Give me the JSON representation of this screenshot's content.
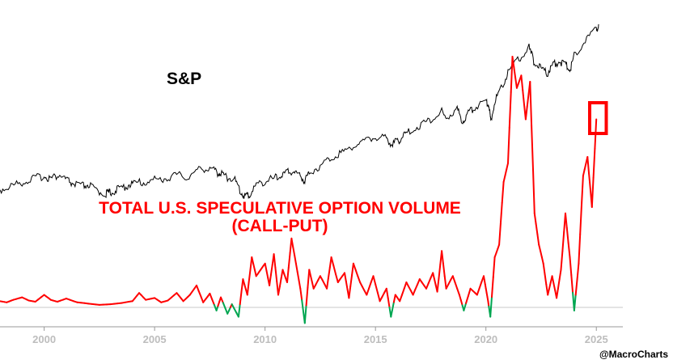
{
  "chart_data": {
    "type": "line",
    "labels": {
      "sp": "S&P",
      "volume_line1": "TOTAL U.S. SPECULATIVE OPTION VOLUME",
      "volume_line2": "(CALL-PUT)"
    },
    "credit": "@MacroCharts",
    "x_ticks": [
      "2000",
      "2005",
      "2010",
      "2015",
      "2020",
      "2025"
    ],
    "x_range": [
      1998,
      2026.2
    ],
    "colors": {
      "sp": "#000000",
      "volume": "#ff0000",
      "volume_below_zero": "#00a651",
      "highlight_box": "#ff0000",
      "zero_line": "#c8c8c8",
      "axis": "#999999",
      "tick_text": "#bdbdbd"
    },
    "series": [
      {
        "key": "sp",
        "name": "S&P",
        "x": [
          1998.0,
          1998.5,
          1999.0,
          1999.5,
          2000.0,
          2000.3,
          2000.7,
          2001.0,
          2001.3,
          2001.7,
          2002.0,
          2002.4,
          2002.8,
          2003.0,
          2003.3,
          2003.7,
          2004.0,
          2004.5,
          2005.0,
          2005.5,
          2006.0,
          2006.5,
          2007.0,
          2007.5,
          2007.8,
          2008.0,
          2008.3,
          2008.6,
          2008.9,
          2009.1,
          2009.3,
          2009.6,
          2010.0,
          2010.4,
          2010.7,
          2011.0,
          2011.3,
          2011.6,
          2011.8,
          2012.0,
          2012.5,
          2013.0,
          2013.5,
          2014.0,
          2014.5,
          2015.0,
          2015.5,
          2015.7,
          2016.0,
          2016.2,
          2016.5,
          2017.0,
          2017.5,
          2018.0,
          2018.2,
          2018.7,
          2018.95,
          2019.2,
          2019.5,
          2020.0,
          2020.15,
          2020.22,
          2020.4,
          2020.7,
          2021.0,
          2021.5,
          2021.95,
          2022.2,
          2022.5,
          2022.8,
          2023.0,
          2023.3,
          2023.6,
          2023.8,
          2024.0,
          2024.5,
          2025.0,
          2025.1
        ],
        "y": [
          0.34,
          0.37,
          0.4,
          0.43,
          0.45,
          0.43,
          0.46,
          0.42,
          0.39,
          0.37,
          0.38,
          0.33,
          0.31,
          0.32,
          0.34,
          0.37,
          0.39,
          0.4,
          0.42,
          0.43,
          0.46,
          0.44,
          0.5,
          0.52,
          0.48,
          0.47,
          0.44,
          0.43,
          0.32,
          0.29,
          0.3,
          0.38,
          0.41,
          0.43,
          0.45,
          0.48,
          0.49,
          0.45,
          0.41,
          0.48,
          0.53,
          0.6,
          0.64,
          0.69,
          0.73,
          0.76,
          0.75,
          0.71,
          0.72,
          0.76,
          0.8,
          0.85,
          0.9,
          0.96,
          0.91,
          0.98,
          0.88,
          0.95,
          1.0,
          1.05,
          1.01,
          0.88,
          1.05,
          1.15,
          1.28,
          1.38,
          1.47,
          1.35,
          1.3,
          1.27,
          1.33,
          1.36,
          1.34,
          1.29,
          1.41,
          1.53,
          1.62,
          1.64
        ]
      },
      {
        "key": "volume",
        "name": "TOTAL U.S. SPECULATIVE OPTION VOLUME (CALL-PUT)",
        "x": [
          1998.0,
          1998.3,
          1998.6,
          1999.0,
          1999.3,
          1999.6,
          2000.0,
          2000.3,
          2000.6,
          2001.0,
          2001.5,
          2002.0,
          2002.5,
          2003.0,
          2003.5,
          2004.0,
          2004.3,
          2004.6,
          2005.0,
          2005.3,
          2005.6,
          2006.0,
          2006.3,
          2006.6,
          2006.9,
          2007.2,
          2007.5,
          2007.8,
          2008.0,
          2008.3,
          2008.5,
          2008.8,
          2009.0,
          2009.2,
          2009.4,
          2009.6,
          2009.8,
          2010.0,
          2010.2,
          2010.4,
          2010.6,
          2010.8,
          2011.0,
          2011.2,
          2011.4,
          2011.6,
          2011.8,
          2012.0,
          2012.2,
          2012.5,
          2012.8,
          2013.0,
          2013.3,
          2013.6,
          2013.8,
          2014.0,
          2014.3,
          2014.6,
          2014.9,
          2015.2,
          2015.5,
          2015.7,
          2015.9,
          2016.1,
          2016.4,
          2016.7,
          2017.0,
          2017.3,
          2017.6,
          2017.8,
          2018.0,
          2018.2,
          2018.5,
          2018.8,
          2019.0,
          2019.3,
          2019.6,
          2019.9,
          2020.0,
          2020.1,
          2020.2,
          2020.4,
          2020.6,
          2020.8,
          2021.0,
          2021.2,
          2021.4,
          2021.6,
          2021.8,
          2022.0,
          2022.2,
          2022.4,
          2022.6,
          2022.8,
          2023.0,
          2023.2,
          2023.4,
          2023.6,
          2023.8,
          2024.0,
          2024.2,
          2024.4,
          2024.6,
          2024.8,
          2025.0
        ],
        "y": [
          1.0,
          0.8,
          1.2,
          1.6,
          1.1,
          0.9,
          2.0,
          1.2,
          0.9,
          1.4,
          0.8,
          0.6,
          0.4,
          0.5,
          0.7,
          1.0,
          2.3,
          1.2,
          1.5,
          0.8,
          1.1,
          2.3,
          1.0,
          2.0,
          3.5,
          0.8,
          2.2,
          -0.5,
          1.6,
          -1.0,
          0.5,
          -1.5,
          4.5,
          2.0,
          8.0,
          5.0,
          6.0,
          7.0,
          3.5,
          8.5,
          2.0,
          6.0,
          4.0,
          11.0,
          7.0,
          3.0,
          -2.5,
          6.0,
          3.0,
          5.0,
          3.0,
          8.0,
          4.0,
          5.5,
          1.5,
          7.0,
          4.0,
          2.0,
          5.0,
          1.0,
          3.0,
          -1.5,
          2.0,
          1.0,
          4.0,
          2.0,
          4.5,
          3.0,
          5.5,
          2.5,
          9.0,
          3.0,
          5.0,
          2.0,
          -0.5,
          3.0,
          2.0,
          5.0,
          3.0,
          1.0,
          -1.5,
          8.0,
          10.0,
          20.0,
          23.0,
          40.0,
          35.0,
          37.0,
          30.0,
          36.0,
          15.0,
          10.0,
          7.0,
          2.0,
          5.0,
          1.5,
          6.0,
          15.0,
          8.0,
          -0.5,
          7.0,
          21.0,
          24.0,
          16.0,
          30.0
        ]
      }
    ],
    "highlight": {
      "x_range": [
        2024.7,
        2025.45
      ],
      "around": "latest S&P and volume readings"
    }
  }
}
